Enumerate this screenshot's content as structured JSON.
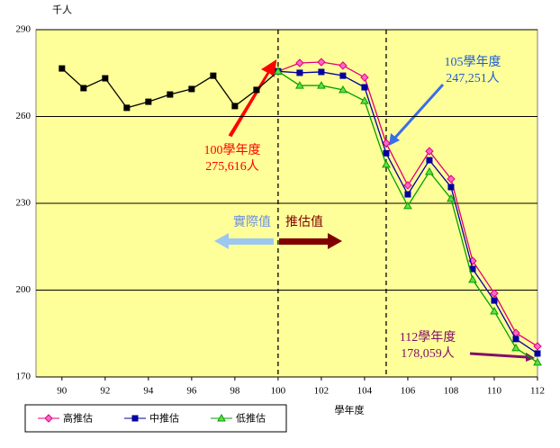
{
  "chart_data": {
    "type": "line",
    "y_unit_label": "千人",
    "xlabel": "學年度",
    "x": [
      90,
      91,
      92,
      93,
      94,
      95,
      96,
      97,
      98,
      99,
      100,
      101,
      102,
      103,
      104,
      105,
      106,
      107,
      108,
      109,
      110,
      111,
      112
    ],
    "xlim": [
      88.8,
      112
    ],
    "xticks": [
      90,
      92,
      94,
      96,
      98,
      100,
      102,
      104,
      106,
      108,
      110,
      112
    ],
    "ylim": [
      170,
      290
    ],
    "yticks": [
      170,
      200,
      230,
      260,
      290
    ],
    "grid": true,
    "vlines": [
      100,
      105
    ],
    "series": [
      {
        "color": "#000000",
        "marker": "square",
        "values": [
          276.6,
          269.8,
          273.2,
          263,
          265.1,
          267.6,
          269.5,
          274.1,
          263.6,
          269.2,
          275.6,
          null,
          null,
          null,
          null,
          null,
          null,
          null,
          null,
          null,
          null,
          null,
          null
        ]
      },
      {
        "name": "高推估",
        "color": "#e0007a",
        "marker": "diamond",
        "values": [
          null,
          null,
          null,
          null,
          null,
          null,
          null,
          null,
          null,
          null,
          275.6,
          278.5,
          278.8,
          277.6,
          273.5,
          250.8,
          236.2,
          248,
          238.4,
          210.1,
          198.9,
          185.2,
          180.6
        ]
      },
      {
        "name": "中推估",
        "color": "#0000a0",
        "marker": "square",
        "values": [
          null,
          null,
          null,
          null,
          null,
          null,
          null,
          null,
          null,
          null,
          275.6,
          275.1,
          275.4,
          274.1,
          270.1,
          247.3,
          233.1,
          244.9,
          235.6,
          207.3,
          196.4,
          183.1,
          178.1
        ]
      },
      {
        "name": "低推估",
        "color": "#00a000",
        "marker": "triangle",
        "values": [
          null,
          null,
          null,
          null,
          null,
          null,
          null,
          null,
          null,
          null,
          275.6,
          270.7,
          270.7,
          269.2,
          265.4,
          243.4,
          229.1,
          240.9,
          231.6,
          203.6,
          192.7,
          180,
          175
        ]
      }
    ],
    "annotations": [
      {
        "lines": [
          "100學年度",
          "275,616人"
        ],
        "color": "#ff0000"
      },
      {
        "lines": [
          "105學年度",
          "247,251人"
        ],
        "color": "#1e5bd6"
      },
      {
        "lines": [
          "112學年度",
          "178,059人"
        ],
        "color": "#80106a"
      },
      {
        "lines": [
          "實際值"
        ],
        "color": "#6f8fe0"
      },
      {
        "lines": [
          "推估值"
        ],
        "color": "#800000"
      }
    ]
  }
}
